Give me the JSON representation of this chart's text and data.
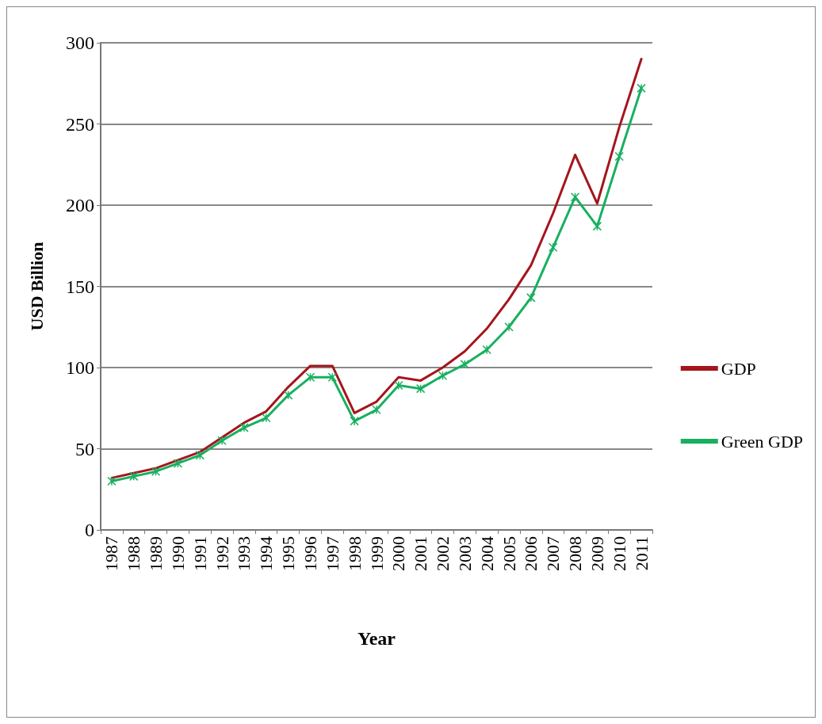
{
  "chart_data": {
    "type": "line",
    "xlabel": "Year",
    "ylabel": "USD Billion",
    "categories": [
      "1987",
      "1988",
      "1989",
      "1990",
      "1991",
      "1992",
      "1993",
      "1994",
      "1995",
      "1996",
      "1997",
      "1998",
      "1999",
      "2000",
      "2001",
      "2002",
      "2003",
      "2004",
      "2005",
      "2006",
      "2007",
      "2008",
      "2009",
      "2010",
      "2011"
    ],
    "series": [
      {
        "name": "GDP",
        "color": "#a5151c",
        "marker": "none",
        "values": [
          32,
          35,
          38,
          43,
          48,
          57,
          66,
          73,
          88,
          101,
          101,
          72,
          79,
          94,
          92,
          100,
          110,
          124,
          142,
          163,
          195,
          231,
          201,
          248,
          290
        ]
      },
      {
        "name": "Green GDP",
        "color": "#18b060",
        "marker": "cross",
        "values": [
          30,
          33,
          36,
          41,
          46,
          55,
          63,
          69,
          83,
          94,
          94,
          67,
          74,
          89,
          87,
          95,
          102,
          111,
          125,
          143,
          174,
          205,
          187,
          230,
          272
        ]
      }
    ],
    "ylim": [
      0,
      300
    ],
    "yticks": [
      0,
      50,
      100,
      150,
      200,
      250,
      300
    ],
    "grid": "y",
    "legend": "right",
    "line_style": "solid"
  }
}
